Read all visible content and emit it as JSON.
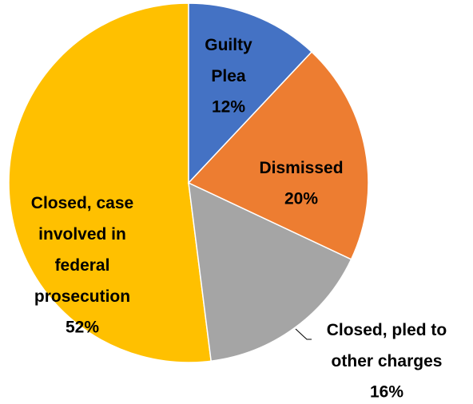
{
  "chart_data": {
    "type": "pie",
    "categories": [
      "Guilty Plea",
      "Dismissed",
      "Closed, pled to other charges",
      "Closed, case involved in federal prosecution"
    ],
    "values": [
      12,
      20,
      16,
      52
    ],
    "value_labels": [
      "12%",
      "20%",
      "16%",
      "52%"
    ],
    "colors": [
      "#4472c4",
      "#ed7d31",
      "#a5a5a5",
      "#ffc000"
    ]
  }
}
